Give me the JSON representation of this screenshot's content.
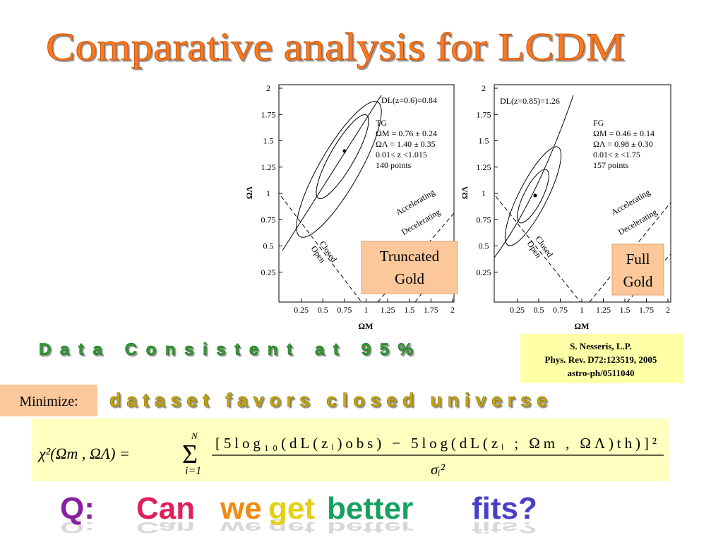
{
  "title": "Comparative analysis for LCDM",
  "plots": [
    {
      "y_axis_label": "ΩΛ",
      "x_axis_label": "ΩM",
      "yticks": [
        2,
        1.75,
        1.5,
        1.25,
        1,
        0.75,
        0.5,
        0.25
      ],
      "xticks": [
        0.25,
        0.5,
        0.75,
        1,
        1.25,
        1.5,
        1.75,
        2
      ],
      "dl_label": "DL(z=0.6)=0.84",
      "sample": "TG",
      "omega_m": "ΩM = 0.76 ± 0.24",
      "omega_l": "ΩΛ = 1.40 ± 0.35",
      "range": "0.01< z <1.015",
      "points": "140 points",
      "accelerating": "Accelerating",
      "decelerating": "Decelerating",
      "closed": "Closed",
      "open": "Open",
      "caption": [
        "Truncated",
        "Gold"
      ]
    },
    {
      "y_axis_label": "ΩΛ",
      "x_axis_label": "ΩM",
      "yticks": [
        2,
        1.75,
        1.5,
        1.25,
        1,
        0.75,
        0.5,
        0.25
      ],
      "xticks": [
        0.25,
        0.5,
        0.75,
        1,
        1.25,
        1.5,
        1.75,
        2
      ],
      "dl_label": "DL(z=0.85)=1.26",
      "sample": "FG",
      "omega_m": "ΩM = 0.46 ± 0.14",
      "omega_l": "ΩΛ = 0.98 ± 0.30",
      "range": "0.01< z <1.75",
      "points": "157 points",
      "accelerating": "Accelerating",
      "decelerating": "Decelerating",
      "closed": "Closed",
      "open": "Open",
      "caption": [
        "Full",
        "Gold"
      ]
    }
  ],
  "consistency": "Data Consistent at 95%",
  "citation": [
    "S. Nesseris, L.P.",
    "Phys. Rev. D72:123519, 2005",
    "astro-ph/0511040"
  ],
  "minimize_label": "Minimize:",
  "remark": "dataset favors closed universe",
  "formula": {
    "lhs": "χ²(Ωm , ΩΛ) =",
    "sum": "Σ",
    "sum_upper": "N",
    "sum_lower": "i=1",
    "numerator": "[5log₁₀(dL(zᵢ)obs) − 5log(dL(zᵢ ; Ωm , ΩΛ)th)]²",
    "denominator": "σᵢ²"
  },
  "question": [
    "Q:",
    "Can",
    "we",
    "get",
    "better",
    "fits?"
  ]
}
